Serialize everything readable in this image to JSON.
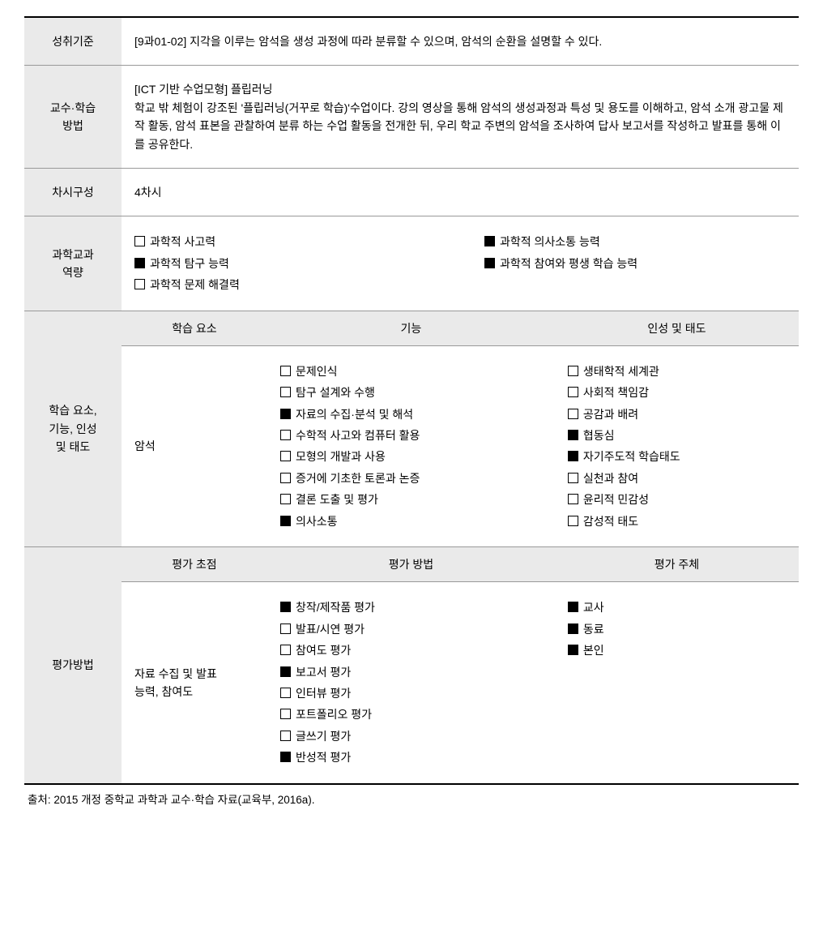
{
  "rows": {
    "r1": {
      "label": "성취기준",
      "text": "[9과01-02] 지각을 이루는 암석을 생성 과정에 따라 분류할 수 있으며, 암석의 순환을 설명할 수 있다."
    },
    "r2": {
      "label": "교수·학습\n방법",
      "text": "[ICT 기반 수업모형] 플립러닝\n학교 밖 체험이 강조된 '플립러닝(거꾸로 학습)'수업이다. 강의 영상을 통해 암석의 생성과정과 특성 및 용도를 이해하고, 암석 소개 광고물 제작 활동, 암석 표본을 관찰하여 분류 하는 수업 활동을 전개한 뒤, 우리 학교 주변의 암석을 조사하여 답사 보고서를 작성하고 발표를 통해 이를 공유한다."
    },
    "r3": {
      "label": "차시구성",
      "text": "4차시"
    },
    "r4": {
      "label": "과학교과\n역량"
    }
  },
  "competency": {
    "left": [
      {
        "label": "과학적 사고력",
        "checked": false
      },
      {
        "label": "과학적 탐구 능력",
        "checked": true
      },
      {
        "label": "과학적 문제 해결력",
        "checked": false
      }
    ],
    "right": [
      {
        "label": "과학적 의사소통 능력",
        "checked": true
      },
      {
        "label": "과학적 참여와 평생 학습 능력",
        "checked": true
      }
    ]
  },
  "elements": {
    "rowLabel": "학습 요소,\n기능, 인성\n및 태도",
    "headers": {
      "c1": "학습 요소",
      "c2": "기능",
      "c3": "인성 및 태도"
    },
    "col1": "암석",
    "col2": [
      {
        "label": "문제인식",
        "checked": false
      },
      {
        "label": "탐구 설계와 수행",
        "checked": false
      },
      {
        "label": "자료의 수집·분석 및 해석",
        "checked": true
      },
      {
        "label": "수학적 사고와 컴퓨터 활용",
        "checked": false
      },
      {
        "label": "모형의 개발과 사용",
        "checked": false
      },
      {
        "label": "증거에 기초한 토론과 논증",
        "checked": false
      },
      {
        "label": "결론 도출 및 평가",
        "checked": false
      },
      {
        "label": "의사소통",
        "checked": true
      }
    ],
    "col3": [
      {
        "label": "생태학적 세계관",
        "checked": false
      },
      {
        "label": "사회적 책임감",
        "checked": false
      },
      {
        "label": "공감과 배려",
        "checked": false
      },
      {
        "label": "협동심",
        "checked": true
      },
      {
        "label": "자기주도적 학습태도",
        "checked": true
      },
      {
        "label": "실천과 참여",
        "checked": false
      },
      {
        "label": "윤리적 민감성",
        "checked": false
      },
      {
        "label": "감성적 태도",
        "checked": false
      }
    ]
  },
  "evaluation": {
    "rowLabel": "평가방법",
    "headers": {
      "c1": "평가 초점",
      "c2": "평가 방법",
      "c3": "평가 주체"
    },
    "col1": "자료 수집 및 발표\n능력, 참여도",
    "col2": [
      {
        "label": "창작/제작품 평가",
        "checked": true
      },
      {
        "label": "발표/시연 평가",
        "checked": false
      },
      {
        "label": "참여도 평가",
        "checked": false
      },
      {
        "label": "보고서 평가",
        "checked": true
      },
      {
        "label": "인터뷰 평가",
        "checked": false
      },
      {
        "label": "포트폴리오 평가",
        "checked": false
      },
      {
        "label": "글쓰기 평가",
        "checked": false
      },
      {
        "label": "반성적 평가",
        "checked": true
      }
    ],
    "col3": [
      {
        "label": "교사",
        "checked": true
      },
      {
        "label": "동료",
        "checked": true
      },
      {
        "label": "본인",
        "checked": true
      }
    ]
  },
  "source": "출처: 2015 개정 중학교 과학과 교수·학습 자료(교육부, 2016a)."
}
